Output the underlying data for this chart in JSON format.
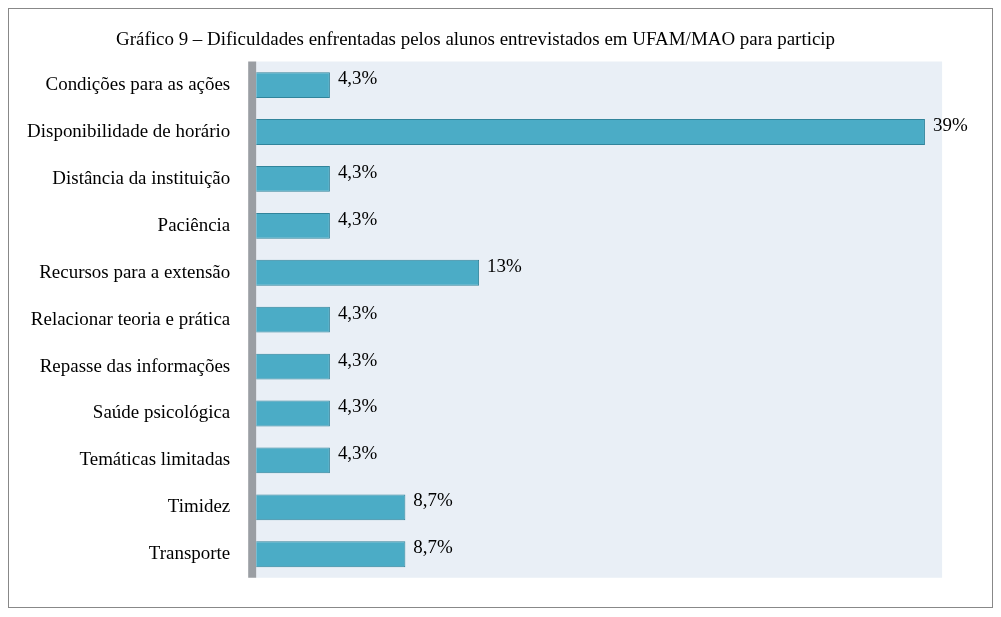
{
  "chart_data": {
    "type": "bar",
    "orientation": "horizontal",
    "title": "Gráfico 9 – Dificuldades enfrentadas pelos alunos entrevistados em UFAM/MAO para particip",
    "categories": [
      "Condições para as ações",
      "Disponibilidade de horário",
      "Distância da instituição",
      "Paciência",
      "Recursos para a extensão",
      "Relacionar teoria e prática",
      "Repasse das informações",
      "Saúde psicológica",
      "Temáticas limitadas",
      "Timidez",
      "Transporte"
    ],
    "values": [
      4.3,
      39,
      4.3,
      4.3,
      13,
      4.3,
      4.3,
      4.3,
      4.3,
      8.7,
      8.7
    ],
    "value_labels": [
      "4,3%",
      "39%",
      "4,3%",
      "4,3%",
      "13%",
      "4,3%",
      "4,3%",
      "4,3%",
      "4,3%",
      "8,7%",
      "8,7%"
    ],
    "color": "#4bacc6",
    "grid": false,
    "legend": false
  }
}
